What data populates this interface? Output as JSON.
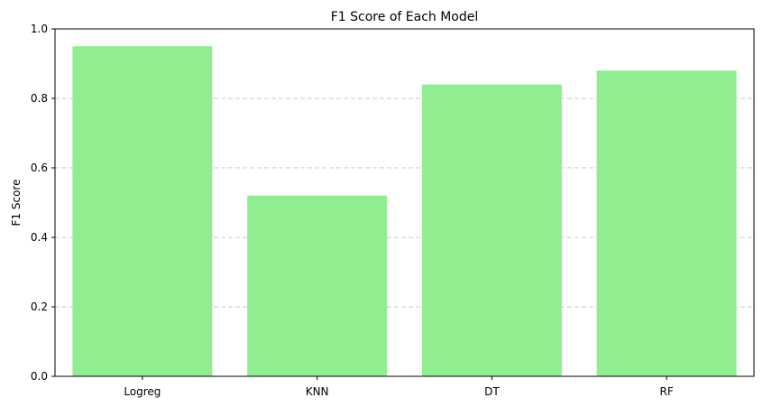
{
  "chart_data": {
    "type": "bar",
    "title": "F1 Score of Each Model",
    "xlabel": "",
    "ylabel": "F1 Score",
    "categories": [
      "Logreg",
      "KNN",
      "DT",
      "RF"
    ],
    "values": [
      0.95,
      0.52,
      0.84,
      0.88
    ],
    "ylim": [
      0,
      1.0
    ],
    "yticks": [
      "0.0",
      "0.2",
      "0.4",
      "0.6",
      "0.8",
      "1.0"
    ],
    "grid": "y-dashed",
    "colors": {
      "bar": "#90ee90",
      "grid": "#c8c8c8",
      "axis": "#000000"
    }
  }
}
